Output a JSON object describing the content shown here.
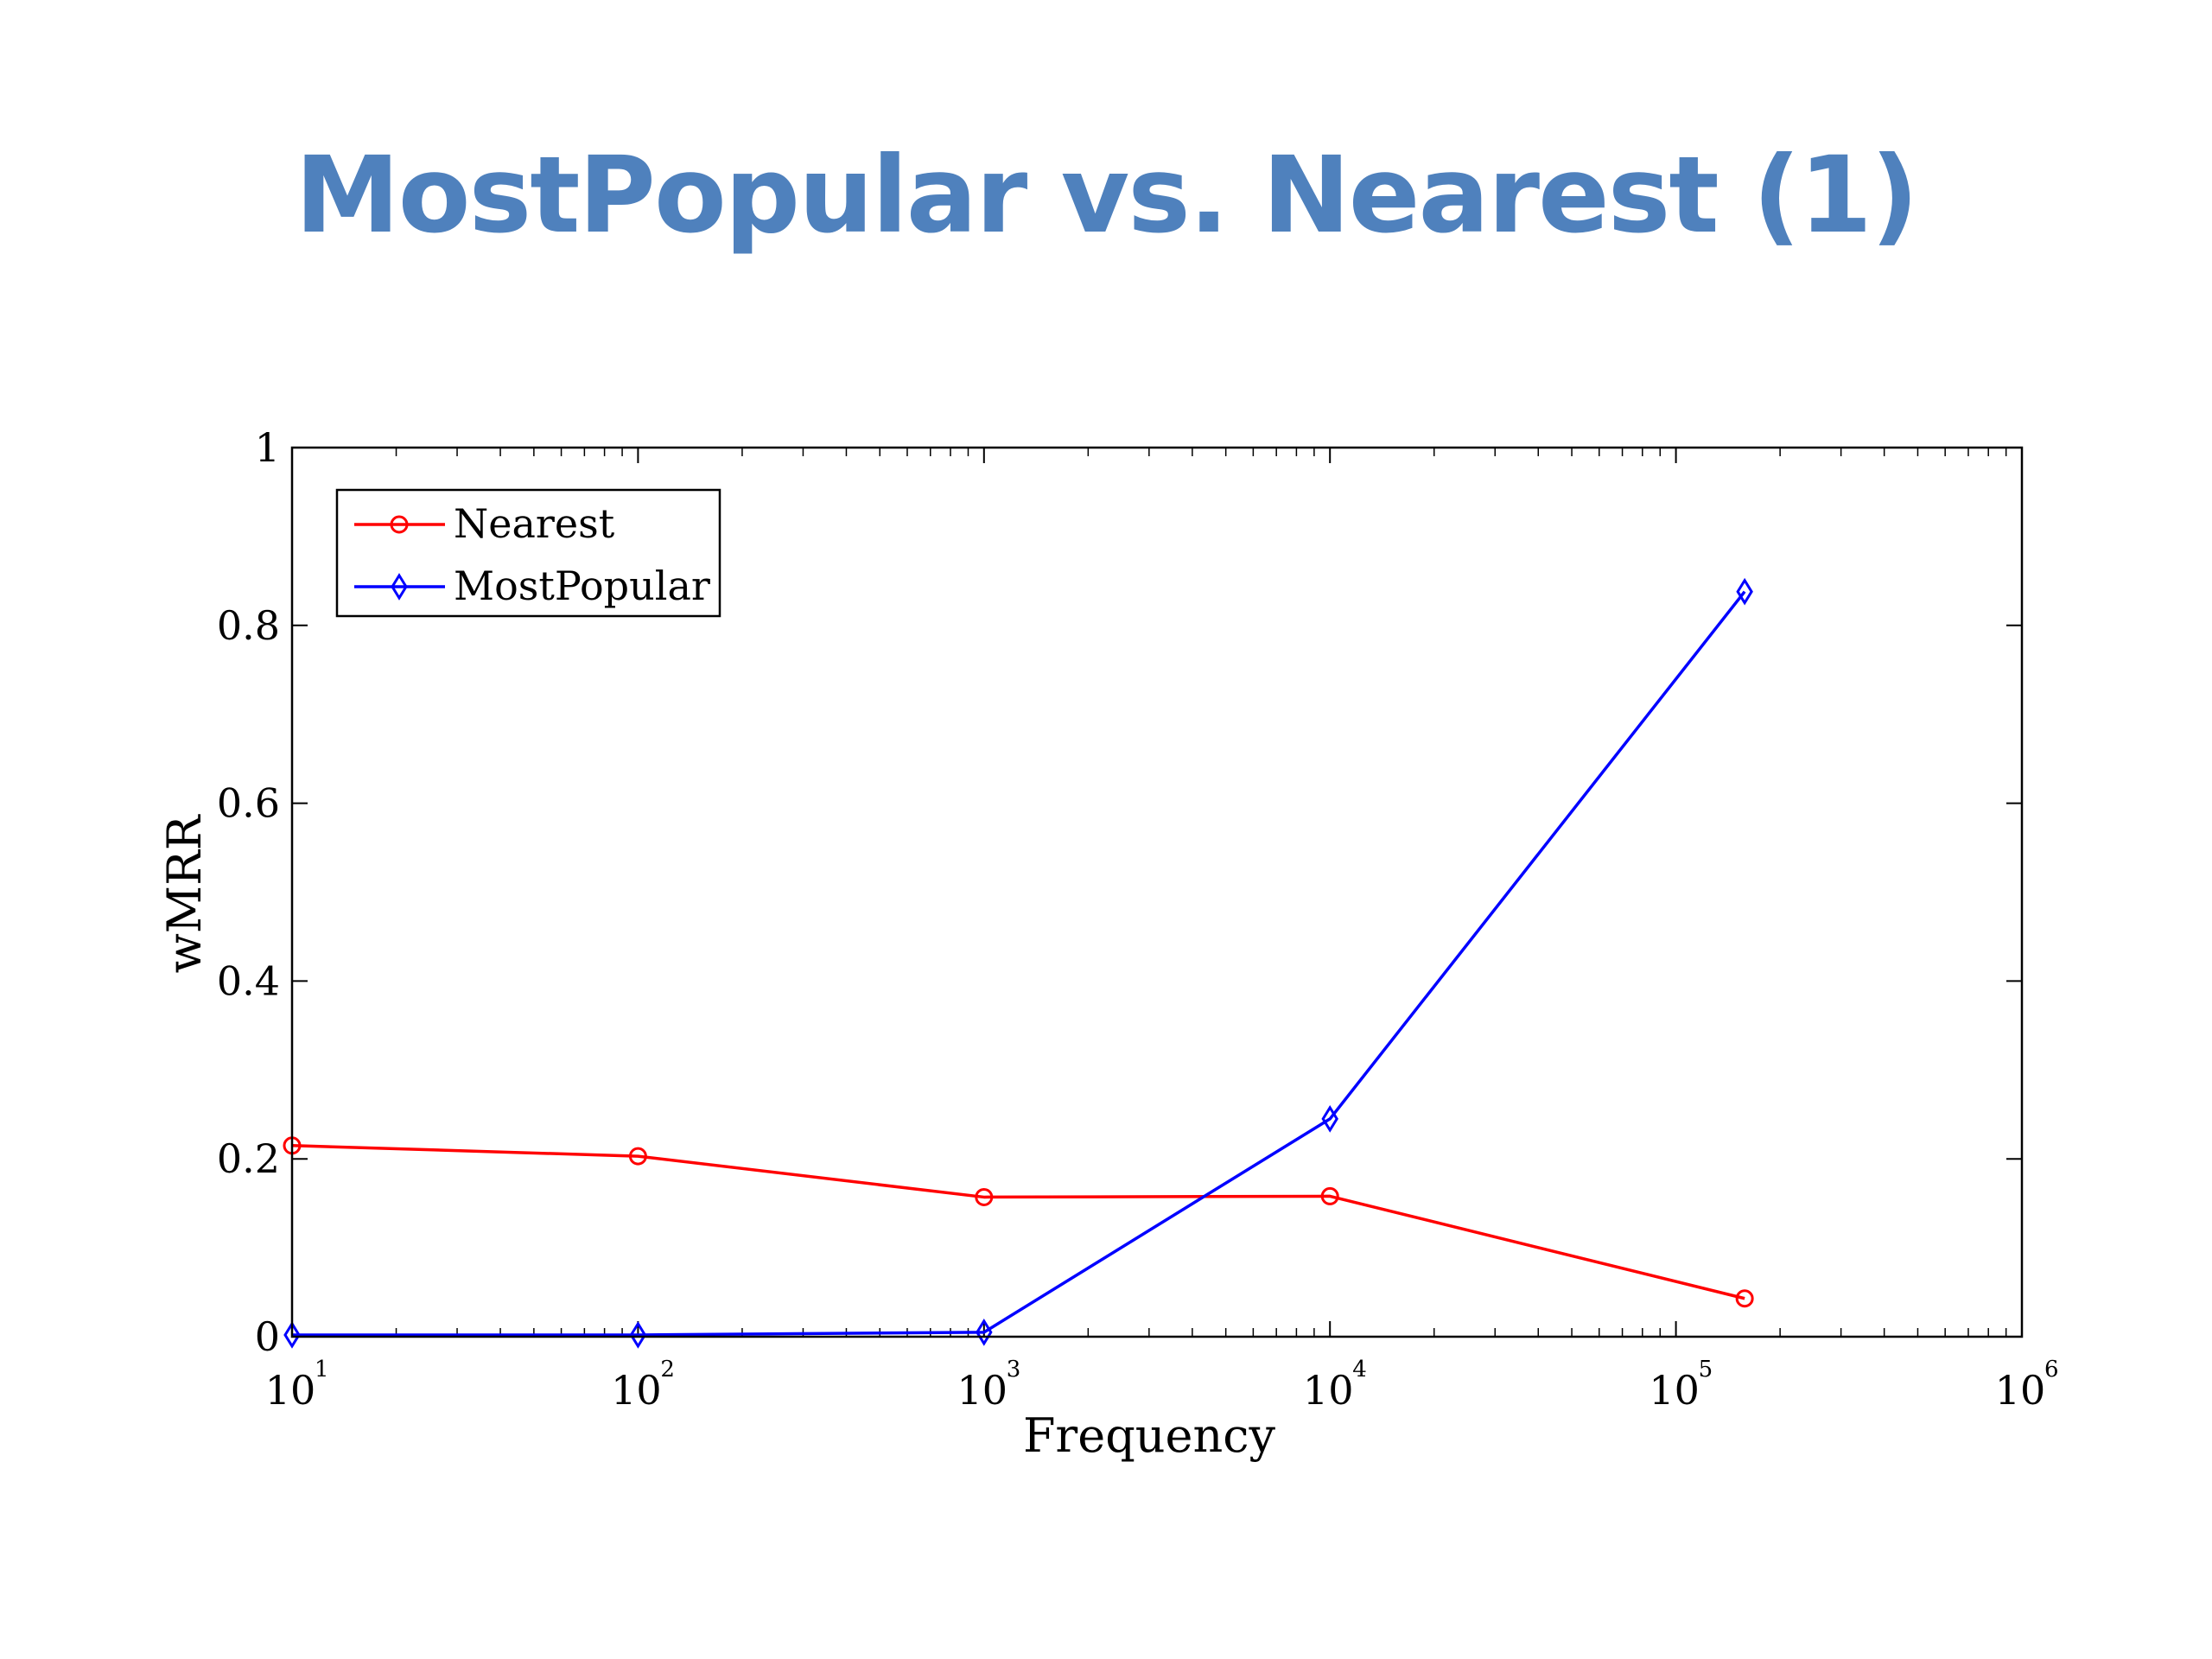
{
  "slide": {
    "title": "MostPopular vs. Nearest (1)",
    "title_color": "#4f81bd"
  },
  "chart_data": {
    "type": "line",
    "xscale": "log",
    "xlim": [
      10,
      1000000
    ],
    "ylim": [
      0,
      1
    ],
    "xlabel": "Frequency",
    "ylabel": "wMRR",
    "grid": false,
    "legend_position": "top-left",
    "xticks": [
      {
        "value": 10,
        "base": "10",
        "exp": "1"
      },
      {
        "value": 100,
        "base": "10",
        "exp": "2"
      },
      {
        "value": 1000,
        "base": "10",
        "exp": "3"
      },
      {
        "value": 10000,
        "base": "10",
        "exp": "4"
      },
      {
        "value": 100000,
        "base": "10",
        "exp": "5"
      },
      {
        "value": 1000000,
        "base": "10",
        "exp": "6"
      }
    ],
    "yticks": [
      {
        "value": 0,
        "label": "0"
      },
      {
        "value": 0.2,
        "label": "0.2"
      },
      {
        "value": 0.4,
        "label": "0.4"
      },
      {
        "value": 0.6,
        "label": "0.6"
      },
      {
        "value": 0.8,
        "label": "0.8"
      },
      {
        "value": 1,
        "label": "1"
      }
    ],
    "series": [
      {
        "name": "Nearest",
        "color": "#ff0000",
        "marker": "circle",
        "points": [
          {
            "x": 10,
            "y": 0.215
          },
          {
            "x": 100,
            "y": 0.203
          },
          {
            "x": 1000,
            "y": 0.157
          },
          {
            "x": 10000,
            "y": 0.158
          },
          {
            "x": 158000,
            "y": 0.043
          }
        ]
      },
      {
        "name": "MostPopular",
        "color": "#0000ff",
        "marker": "diamond",
        "points": [
          {
            "x": 10,
            "y": 0.002
          },
          {
            "x": 100,
            "y": 0.002
          },
          {
            "x": 1000,
            "y": 0.005
          },
          {
            "x": 10000,
            "y": 0.245
          },
          {
            "x": 158000,
            "y": 0.838
          }
        ]
      }
    ]
  }
}
